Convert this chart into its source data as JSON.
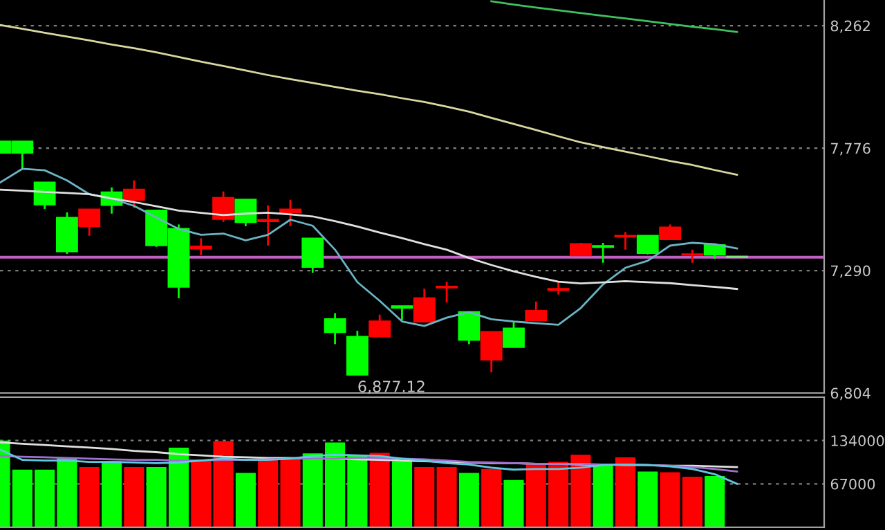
{
  "chart_data": [
    {
      "type": "candlestick",
      "categories": [
        null,
        null,
        null,
        null,
        null,
        null,
        null,
        null,
        null,
        null,
        null,
        null,
        null,
        null,
        null,
        null,
        null,
        null,
        null,
        null,
        null,
        null,
        null,
        null,
        null,
        null,
        null,
        null,
        null,
        null,
        null,
        null,
        null,
        null
      ],
      "ohlc": [
        [
          7802,
          7802,
          7758,
          7758
        ],
        [
          7802,
          7802,
          7694,
          7758
        ],
        [
          7639,
          7639,
          7534,
          7553
        ],
        [
          7499,
          7521,
          7356,
          7367
        ],
        [
          7466,
          7532,
          7428,
          7532
        ],
        [
          7600,
          7620,
          7516,
          7551
        ],
        [
          7571,
          7648,
          7538,
          7611
        ],
        [
          7528,
          7528,
          7384,
          7391
        ],
        [
          7455,
          7473,
          7180,
          7226
        ],
        [
          7378,
          7418,
          7351,
          7385
        ],
        [
          7495,
          7604,
          7483,
          7578
        ],
        [
          7571,
          7571,
          7466,
          7483
        ],
        [
          7486,
          7549,
          7389,
          7491
        ],
        [
          7521,
          7571,
          7466,
          7532
        ],
        [
          7417,
          7417,
          7281,
          7305
        ],
        [
          7097,
          7121,
          6998,
          7046
        ],
        [
          7027,
          7051,
          6877.12,
          6877.12
        ],
        [
          7029,
          7115,
          7029,
          7088
        ],
        [
          7148,
          7148,
          7093,
          7143
        ],
        [
          7088,
          7218,
          7088,
          7180
        ],
        [
          7223,
          7246,
          7163,
          7226
        ],
        [
          7125,
          7125,
          6998,
          7015
        ],
        [
          6937,
          7046,
          6886,
          7046
        ],
        [
          7060,
          7088,
          6987,
          6987
        ],
        [
          7093,
          7167,
          7093,
          7130
        ],
        [
          7213,
          7248,
          7195,
          7217
        ],
        [
          7351,
          7400,
          7351,
          7395
        ],
        [
          7387,
          7400,
          7321,
          7384
        ],
        [
          7425,
          7443,
          7373,
          7428
        ],
        [
          7428,
          7428,
          7354,
          7360
        ],
        [
          7415,
          7473,
          7415,
          7461
        ],
        [
          7353,
          7373,
          7321,
          7354
        ],
        [
          7391,
          7391,
          7336,
          7354
        ],
        [
          7345,
          7345,
          7344,
          7344
        ]
      ],
      "colors": [
        "#00ff00",
        "#00ff00",
        "#00ff00",
        "#00ff00",
        "#ff0000",
        "#00ff00",
        "#ff0000",
        "#00ff00",
        "#00ff00",
        "#ff0000",
        "#ff0000",
        "#00ff00",
        "#ff0000",
        "#ff0000",
        "#00ff00",
        "#00ff00",
        "#00ff00",
        "#ff0000",
        "#00ff00",
        "#ff0000",
        "#ff0000",
        "#00ff00",
        "#ff0000",
        "#00ff00",
        "#ff0000",
        "#ff0000",
        "#ff0000",
        "#00ff00",
        "#ff0000",
        "#00ff00",
        "#ff0000",
        "#ff0000",
        "#00ff00",
        "#80e080"
      ],
      "series": [
        {
          "type": "line",
          "color": "#6ab4c4",
          "values": [
            7639,
            7694,
            7688,
            7648,
            7593,
            7575,
            7547,
            7501,
            7455,
            7432,
            7437,
            7410,
            7432,
            7492,
            7468,
            7373,
            7244,
            7170,
            7088,
            7070,
            7103,
            7125,
            7097,
            7088,
            7081,
            7075,
            7141,
            7235,
            7301,
            7329,
            7389,
            7400,
            7395,
            7378
          ]
        },
        {
          "type": "line",
          "color": "#e0e0e0",
          "values": [
            7611,
            7607,
            7602,
            7598,
            7593,
            7576,
            7562,
            7545,
            7528,
            7519,
            7510,
            7516,
            7520,
            7513,
            7505,
            7486,
            7465,
            7441,
            7419,
            7395,
            7373,
            7340,
            7312,
            7287,
            7265,
            7246,
            7239,
            7243,
            7248,
            7244,
            7240,
            7232,
            7225,
            7217
          ]
        },
        {
          "type": "line",
          "color": "#d8d8a0",
          "values": [
            8265,
            8250,
            8234,
            8219,
            8204,
            8187,
            8173,
            8156,
            8138,
            8119,
            8102,
            8084,
            8066,
            8050,
            8035,
            8019,
            8004,
            7990,
            7974,
            7959,
            7941,
            7921,
            7896,
            7872,
            7848,
            7823,
            7799,
            7780,
            7762,
            7744,
            7725,
            7709,
            7689,
            7670
          ]
        },
        {
          "type": "line",
          "color": "#40c060",
          "values": [
            null,
            null,
            null,
            null,
            null,
            null,
            null,
            null,
            null,
            null,
            null,
            null,
            null,
            null,
            null,
            null,
            null,
            null,
            null,
            null,
            null,
            null,
            8359,
            8346,
            8334,
            8323,
            8312,
            8301,
            8291,
            8280,
            8269,
            8258,
            8248,
            8237
          ]
        }
      ],
      "ref_lines": [
        {
          "axis": "y",
          "value": 7343,
          "color": "#c060c0"
        }
      ],
      "annotations": [
        "6,877.12"
      ],
      "ylim": [
        6804,
        8364
      ],
      "yticks": [
        {
          "value": 6804,
          "label": "6,804"
        },
        {
          "value": 7290,
          "label": "7,290"
        },
        {
          "value": 7776,
          "label": "7,776"
        },
        {
          "value": 8262,
          "label": "8,262"
        }
      ],
      "grid": "y",
      "tick_labels": "y"
    },
    {
      "type": "bar",
      "categories": [
        null,
        null,
        null,
        null,
        null,
        null,
        null,
        null,
        null,
        null,
        null,
        null,
        null,
        null,
        null,
        null,
        null,
        null,
        null,
        null,
        null,
        null,
        null,
        null,
        null,
        null,
        null,
        null,
        null,
        null,
        null,
        null,
        null,
        null
      ],
      "values": [
        134000,
        89000,
        89000,
        107000,
        93000,
        102000,
        93000,
        93000,
        123000,
        102000,
        133000,
        84000,
        104000,
        106000,
        114000,
        131000,
        111000,
        115000,
        102000,
        93000,
        93000,
        84000,
        90000,
        73000,
        98000,
        101000,
        112000,
        97000,
        108000,
        86000,
        85000,
        78000,
        79000,
        null
      ],
      "colors": [
        "#00ff00",
        "#00ff00",
        "#00ff00",
        "#00ff00",
        "#ff0000",
        "#00ff00",
        "#ff0000",
        "#00ff00",
        "#00ff00",
        "#ff0000",
        "#ff0000",
        "#00ff00",
        "#ff0000",
        "#ff0000",
        "#00ff00",
        "#00ff00",
        "#00ff00",
        "#ff0000",
        "#00ff00",
        "#ff0000",
        "#ff0000",
        "#00ff00",
        "#ff0000",
        "#00ff00",
        "#ff0000",
        "#ff0000",
        "#ff0000",
        "#00ff00",
        "#ff0000",
        "#00ff00",
        "#ff0000",
        "#ff0000",
        "#00ff00",
        "#80e080"
      ],
      "series": [
        {
          "type": "line",
          "color": "#e0e0e0",
          "values": [
            131000,
            129000,
            127000,
            125000,
            123000,
            121000,
            118000,
            116000,
            113000,
            111000,
            109000,
            108000,
            107000,
            107000,
            106000,
            106000,
            105000,
            104000,
            103000,
            102000,
            101000,
            100000,
            99000,
            99000,
            98000,
            98000,
            97000,
            97000,
            96000,
            96000,
            95000,
            95000,
            94000,
            93000
          ]
        },
        {
          "type": "line",
          "color": "#a070d0",
          "values": [
            110000,
            109000,
            108000,
            107000,
            106000,
            105000,
            104000,
            104000,
            103000,
            103000,
            104000,
            104000,
            105000,
            106000,
            106000,
            106000,
            107000,
            107000,
            106000,
            105000,
            103000,
            101000,
            100000,
            99000,
            98000,
            98000,
            98000,
            97000,
            97000,
            96000,
            95000,
            93000,
            90000,
            86000
          ]
        },
        {
          "type": "line",
          "color": "#60c8e0",
          "values": [
            120000,
            104000,
            103000,
            103000,
            101000,
            101000,
            100000,
            99000,
            100000,
            103000,
            106000,
            104000,
            104000,
            106000,
            110000,
            112000,
            111000,
            110000,
            106000,
            103000,
            99000,
            97000,
            92000,
            89000,
            90000,
            90000,
            92000,
            96000,
            97000,
            96000,
            94000,
            90000,
            82000,
            67000
          ]
        }
      ],
      "ylim": [
        0,
        201000
      ],
      "yticks": [
        67000,
        134000
      ],
      "grid": "y",
      "tick_labels": "y"
    }
  ]
}
